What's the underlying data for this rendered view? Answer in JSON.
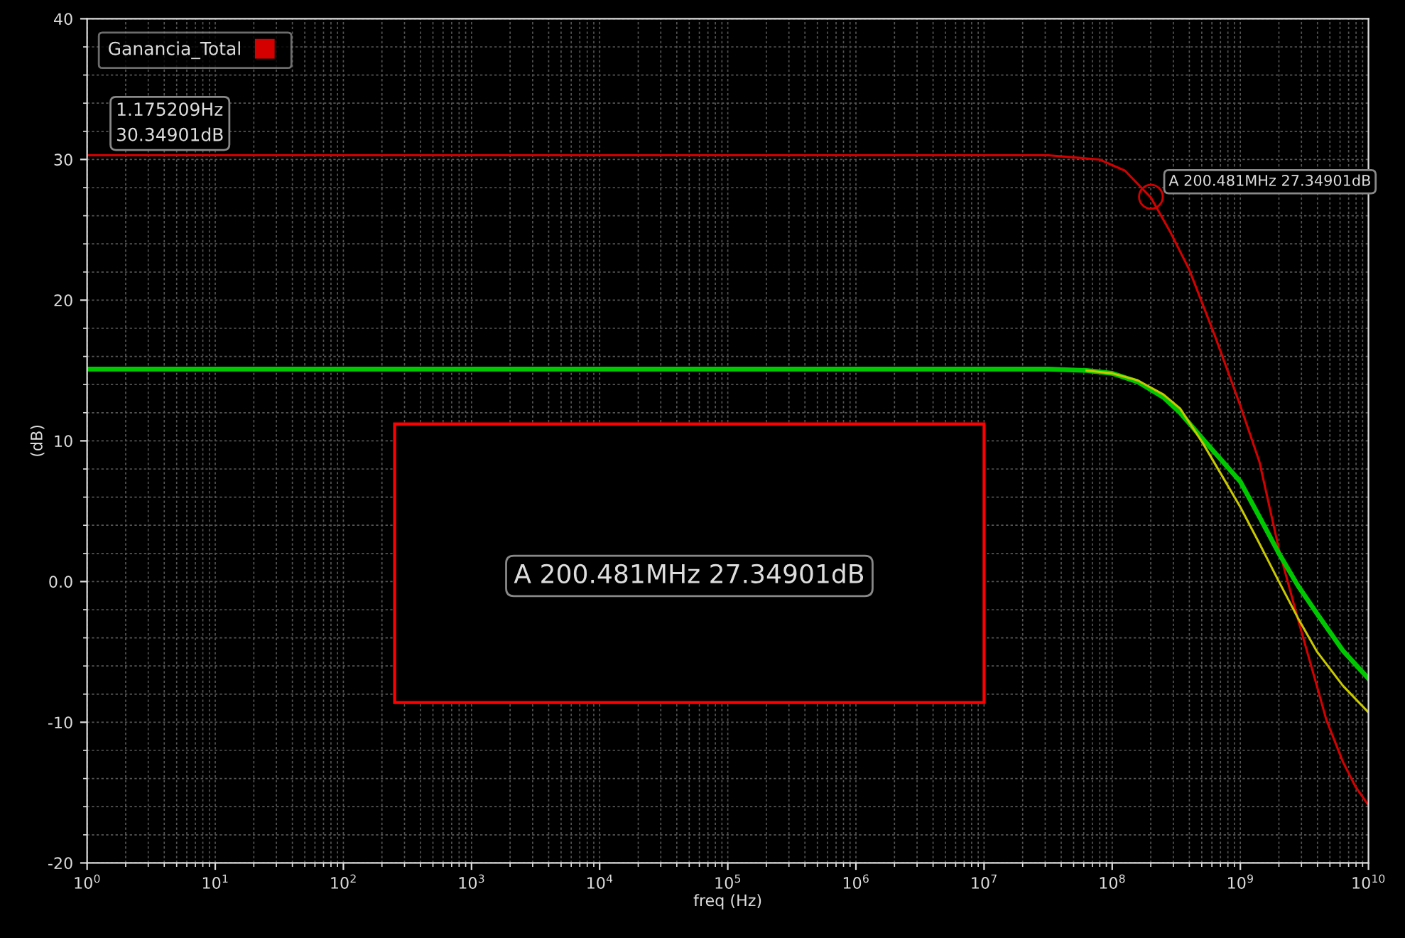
{
  "chart_data": {
    "type": "line",
    "xlabel": "freq (Hz)",
    "ylabel": "(dB)",
    "log": "x",
    "grid": true,
    "legend": "top left",
    "marker": "none",
    "line_style": "solid",
    "xlim": [
      1,
      10000000000.0
    ],
    "ylim": [
      -20,
      40
    ],
    "xticks": [
      {
        "value": 1,
        "label": "10$^{0}$"
      },
      {
        "value": 10,
        "label": "10$^{1}$"
      },
      {
        "value": 100,
        "label": "10$^{2}$"
      },
      {
        "value": 1000,
        "label": "10$^{3}$"
      },
      {
        "value": 10000,
        "label": "10$^{4}$"
      },
      {
        "value": 100000,
        "label": "10$^{5}$"
      },
      {
        "value": 1000000,
        "label": "10$^{6}$"
      },
      {
        "value": 10000000,
        "label": "10$^{7}$"
      },
      {
        "value": 100000000,
        "label": "10$^{8}$"
      },
      {
        "value": 1000000000,
        "label": "10$^{9}$"
      },
      {
        "value": 10000000000,
        "label": "10$^{10}$"
      }
    ],
    "yticks": [
      -20,
      -10,
      {
        "value": 0,
        "label": "0.0"
      },
      10,
      20,
      30,
      40
    ],
    "series": [
      {
        "name": "Ganancia_Total",
        "color": "#d40000",
        "x": [
          1,
          10000000.0,
          31600000.0,
          79400000.0,
          126000000.0,
          200000000.0,
          282000000.0,
          398000000.0,
          631000000.0,
          1000000000.0,
          1410000000.0,
          2000000000.0,
          2820000000.0,
          3980000000.0,
          4680000000.0,
          6310000000.0,
          7940000000.0,
          10000000000.0
        ],
        "values": [
          30.3,
          30.3,
          30.3,
          30.0,
          29.2,
          27.3,
          24.9,
          22.2,
          17.5,
          12.5,
          8.5,
          2.3,
          -2.7,
          -7.5,
          -9.8,
          -12.8,
          -14.6,
          -15.9
        ]
      },
      {
        "color": "#c8c800",
        "x": [
          63100000.0,
          100000000.0,
          158000000.0,
          251000000.0,
          339000000.0,
          513000000.0,
          1000000000.0,
          1410000000.0,
          2000000000.0,
          2820000000.0,
          3980000000.0,
          6310000000.0,
          10000000000.0
        ],
        "values": [
          15.0,
          14.8,
          14.3,
          13.3,
          12.3,
          9.8,
          5.3,
          2.7,
          0.0,
          -2.6,
          -5.0,
          -7.4,
          -9.3
        ]
      },
      {
        "color": "#00c800",
        "x": [
          1,
          31600000.0,
          63100000.0,
          100000000.0,
          158000000.0,
          251000000.0,
          339000000.0,
          513000000.0,
          1000000000.0,
          1410000000.0,
          2000000000.0,
          2820000000.0,
          3980000000.0,
          6310000000.0,
          10000000000.0
        ],
        "values": [
          15.1,
          15.1,
          15.0,
          14.8,
          14.2,
          13.1,
          12.0,
          10.1,
          7.1,
          4.6,
          2.0,
          -0.3,
          -2.3,
          -4.9,
          -6.9
        ]
      }
    ],
    "annotations": [
      {
        "text": "1.175209Hz\n30.34901dB",
        "x": 1.175209,
        "y": 30.34901
      },
      {
        "text": "A 200.481MHz 27.34901dB",
        "x": 200481000,
        "y": 27.34901
      },
      "A 200.481MHz 27.34901dB"
    ]
  }
}
